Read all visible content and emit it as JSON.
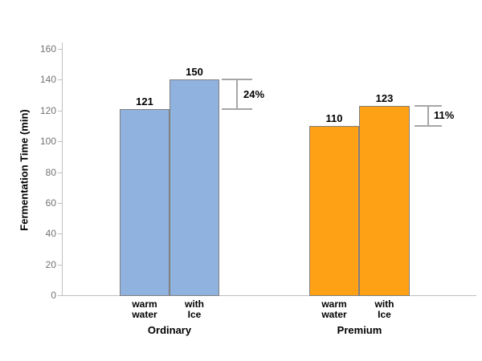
{
  "chart_data": {
    "type": "bar",
    "title": "",
    "xlabel": "",
    "ylabel": "Fermentation Time (min)",
    "ylim": [
      0,
      160
    ],
    "yticks": [
      0,
      20,
      40,
      60,
      80,
      100,
      120,
      140,
      160
    ],
    "grid": false,
    "legend": false,
    "groups": [
      {
        "label": "Ordinary",
        "bar_color": "#8FB2DE",
        "bars": [
          {
            "category": [
              "warm",
              "water"
            ],
            "value_label": "121",
            "value": 121,
            "drawn_value": 121
          },
          {
            "category": [
              "with",
              "Ice"
            ],
            "value_label": "150",
            "value": 150,
            "drawn_value": 140
          }
        ],
        "difference_label": "24%"
      },
      {
        "label": "Premium",
        "bar_color": "#FFA115",
        "bars": [
          {
            "category": [
              "warm",
              "water"
            ],
            "value_label": "110",
            "value": 110,
            "drawn_value": 110
          },
          {
            "category": [
              "with",
              "Ice"
            ],
            "value_label": "123",
            "value": 123,
            "drawn_value": 123
          }
        ],
        "difference_label": "11%"
      }
    ]
  },
  "colors": {
    "bar_border": "#808080",
    "axis_line": "#BFBFBF",
    "tick_label": "#737373",
    "bracket": "#A6A6A6",
    "text": "#000000",
    "background": "#FFFFFF"
  }
}
